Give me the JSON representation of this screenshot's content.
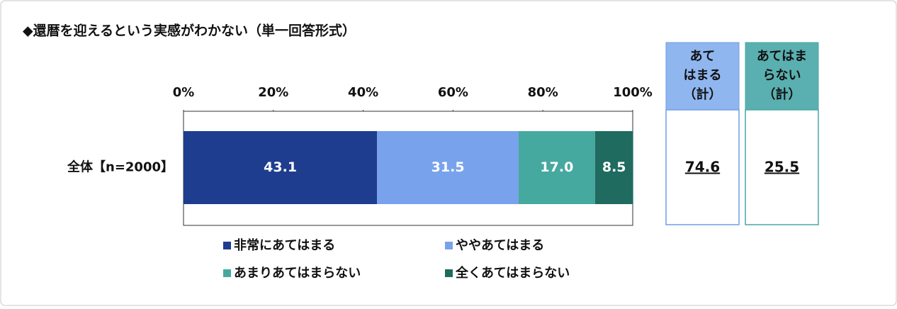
{
  "chart_data": {
    "type": "stacked-bar",
    "orientation": "horizontal",
    "title": "◆還暦を迎えるという実感がわかない（単一回答形式）",
    "categories": [
      "全体【n=2000】"
    ],
    "series": [
      {
        "name": "非常にあてはまる",
        "color": "#1e3d8f",
        "values": [
          43.1
        ],
        "value_labels": [
          "43.1"
        ]
      },
      {
        "name": "ややあてはまる",
        "color": "#78a2ec",
        "values": [
          31.5
        ],
        "value_labels": [
          "31.5"
        ]
      },
      {
        "name": "あまりあてはまらない",
        "color": "#46a9a0",
        "values": [
          17.0
        ],
        "value_labels": [
          "17.0"
        ]
      },
      {
        "name": "全くあてはまらない",
        "color": "#1f6b5f",
        "values": [
          8.5
        ],
        "value_labels": [
          "8.5"
        ]
      }
    ],
    "xlim": [
      0,
      100
    ],
    "xticks": [
      {
        "value": 0,
        "label": "0%"
      },
      {
        "value": 20,
        "label": "20%"
      },
      {
        "value": 40,
        "label": "40%"
      },
      {
        "value": 60,
        "label": "60%"
      },
      {
        "value": 80,
        "label": "80%"
      },
      {
        "value": 100,
        "label": "100%"
      }
    ],
    "summary": [
      {
        "label_lines": [
          "あて",
          "はまる",
          "（計）"
        ],
        "color": "#8fb6ef",
        "border": "#6f9ee6",
        "value": "74.6"
      },
      {
        "label_lines": [
          "あてはま",
          "らない",
          "（計）"
        ],
        "color": "#5aafb0",
        "border": "#4aa5a6",
        "value": "25.5"
      }
    ]
  }
}
